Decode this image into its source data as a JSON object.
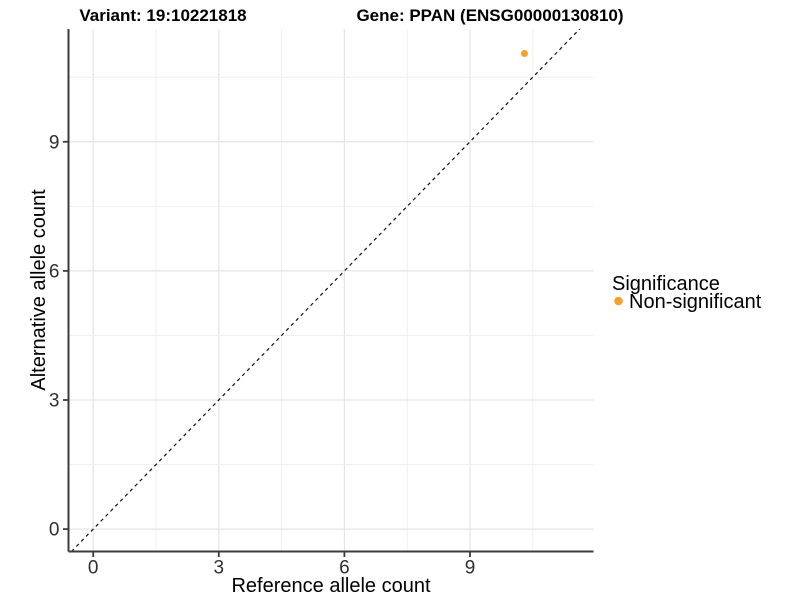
{
  "chart_data": {
    "type": "scatter",
    "titles": {
      "variant": "Variant: 19:10221818",
      "gene": "Gene: PPAN (ENSG00000130810)"
    },
    "xlabel": "Reference allele count",
    "ylabel": "Alternative allele count",
    "x_ticks": [
      0,
      3,
      6,
      9
    ],
    "y_ticks": [
      0,
      3,
      6,
      9
    ],
    "xlim": [
      -0.59,
      11.95
    ],
    "ylim": [
      -0.52,
      11.62
    ],
    "grid": true,
    "grid_interval": 1.5,
    "points": [
      {
        "x": 10.3,
        "y": 11.05,
        "series": "Non-significant"
      }
    ],
    "identity_line": {
      "equation": "y = x",
      "style": "dashed"
    },
    "legend": {
      "title": "Significance",
      "position": "right",
      "items": [
        {
          "label": "Non-significant",
          "color": "#F8A02C"
        }
      ]
    },
    "colors": {
      "point": "#F8A02C",
      "grid_major": "#E4E4E4",
      "grid_minor": "#EFEFEF",
      "axis": "#3C3C3C",
      "dash_line": "#111111",
      "background": "#FFFFFF"
    }
  }
}
